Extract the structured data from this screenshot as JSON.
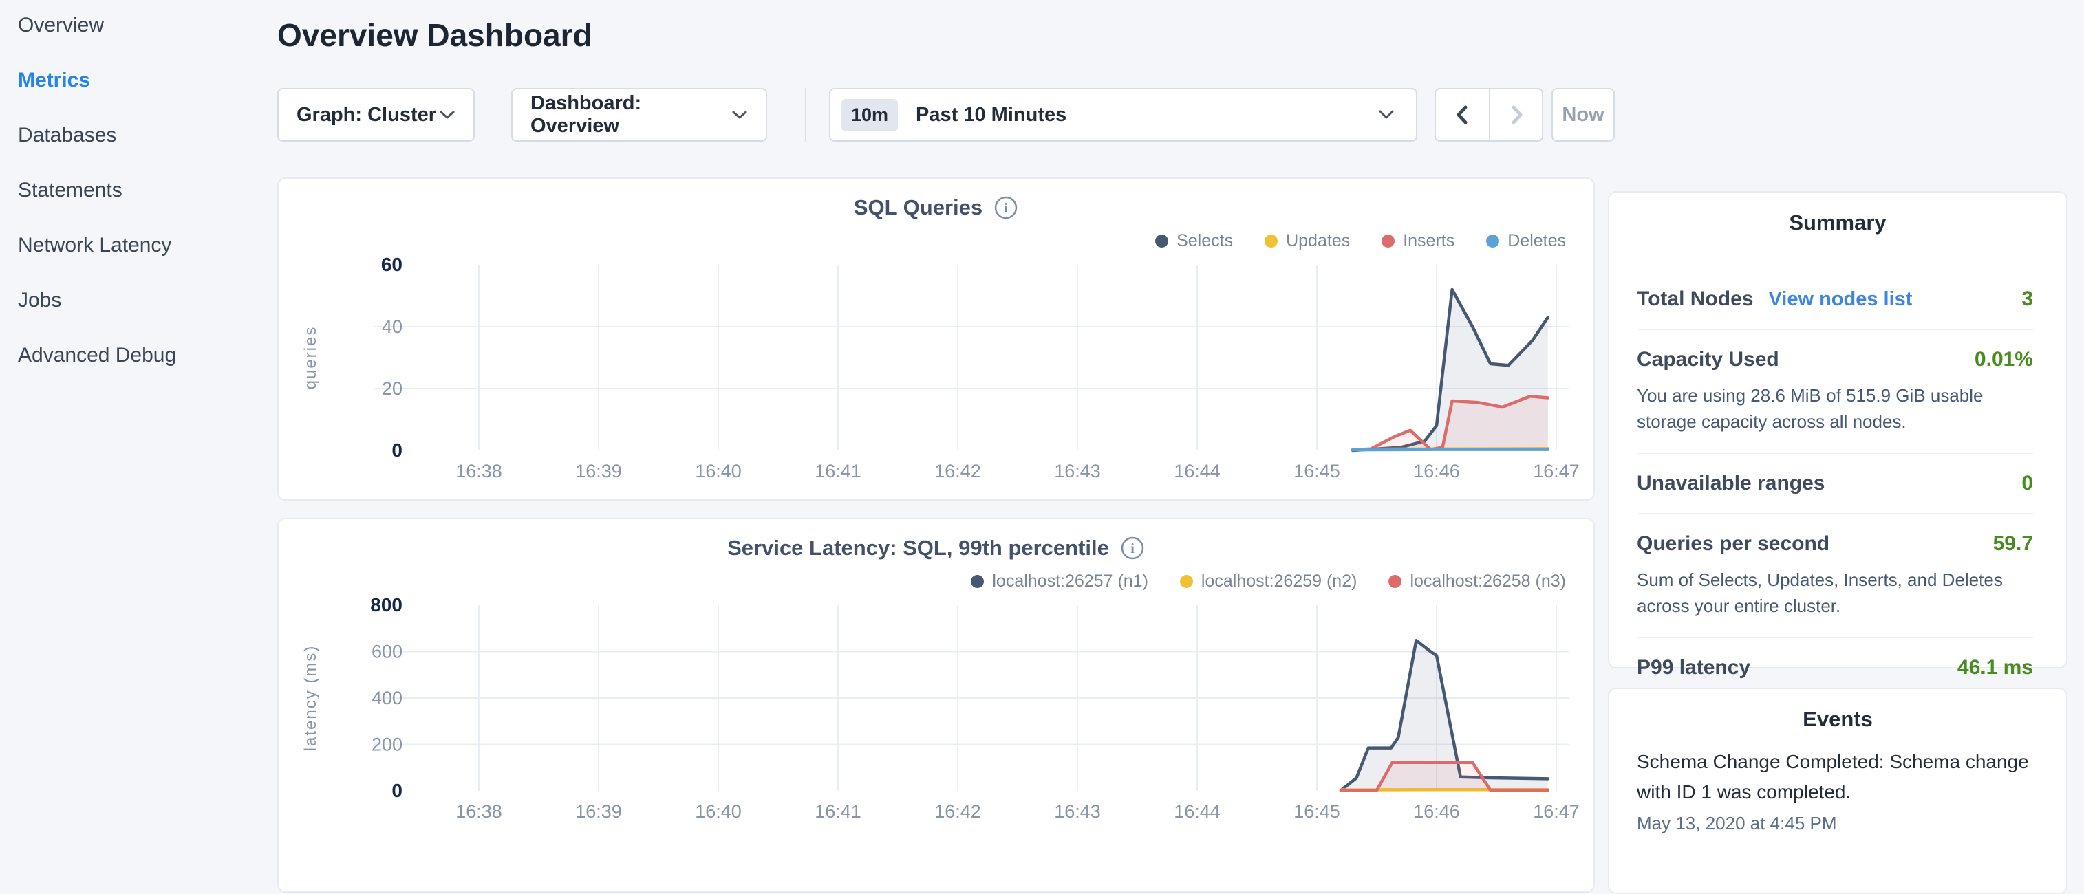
{
  "sidebar": {
    "items": [
      {
        "label": "Overview",
        "active": false
      },
      {
        "label": "Metrics",
        "active": true
      },
      {
        "label": "Databases",
        "active": false
      },
      {
        "label": "Statements",
        "active": false
      },
      {
        "label": "Network Latency",
        "active": false
      },
      {
        "label": "Jobs",
        "active": false
      },
      {
        "label": "Advanced Debug",
        "active": false
      }
    ]
  },
  "header": {
    "title": "Overview Dashboard"
  },
  "controls": {
    "graph_dropdown": "Graph: Cluster",
    "dashboard_dropdown": "Dashboard: Overview",
    "range_badge": "10m",
    "range_label": "Past 10 Minutes",
    "now_label": "Now"
  },
  "icons": {
    "dropdown": "chevron-down",
    "prev": "chevron-left",
    "next": "chevron-right",
    "info": "info-circle"
  },
  "chart_data": [
    {
      "type": "area",
      "title": "SQL Queries",
      "ylabel": "queries",
      "ylim": [
        0,
        60
      ],
      "yticks": [
        0,
        20,
        40,
        60
      ],
      "xtick_labels": [
        "16:38",
        "16:39",
        "16:40",
        "16:41",
        "16:42",
        "16:43",
        "16:44",
        "16:45",
        "16:46",
        "16:47"
      ],
      "x_range_minutes": [
        0,
        9
      ],
      "grid": true,
      "legend_position": "top-right",
      "series": [
        {
          "name": "Selects",
          "color": "#475872",
          "fill": true,
          "points": [
            [
              7.3,
              0
            ],
            [
              7.5,
              0.5
            ],
            [
              7.7,
              1
            ],
            [
              7.9,
              3
            ],
            [
              8.0,
              8
            ],
            [
              8.13,
              52
            ],
            [
              8.3,
              40
            ],
            [
              8.45,
              28
            ],
            [
              8.6,
              27.5
            ],
            [
              8.8,
              35.5
            ],
            [
              8.93,
              43
            ]
          ]
        },
        {
          "name": "Updates",
          "color": "#f2c033",
          "fill": false,
          "points": [
            [
              7.3,
              0.4
            ],
            [
              8.0,
              0.5
            ],
            [
              8.93,
              0.6
            ]
          ]
        },
        {
          "name": "Inserts",
          "color": "#dd6b6b",
          "fill": true,
          "points": [
            [
              7.3,
              0.2
            ],
            [
              7.45,
              0.5
            ],
            [
              7.65,
              4.5
            ],
            [
              7.78,
              6.5
            ],
            [
              7.95,
              0.3
            ],
            [
              8.05,
              1
            ],
            [
              8.13,
              16
            ],
            [
              8.35,
              15.5
            ],
            [
              8.55,
              14
            ],
            [
              8.78,
              17.5
            ],
            [
              8.93,
              17
            ]
          ]
        },
        {
          "name": "Deletes",
          "color": "#5ca2d6",
          "fill": false,
          "points": [
            [
              7.3,
              0.2
            ],
            [
              8.0,
              0.3
            ],
            [
              8.93,
              0.3
            ]
          ]
        }
      ]
    },
    {
      "type": "area",
      "title": "Service Latency: SQL, 99th percentile",
      "ylabel": "latency (ms)",
      "ylim": [
        0,
        800
      ],
      "yticks": [
        0,
        200,
        400,
        600,
        800
      ],
      "xtick_labels": [
        "16:38",
        "16:39",
        "16:40",
        "16:41",
        "16:42",
        "16:43",
        "16:44",
        "16:45",
        "16:46",
        "16:47"
      ],
      "x_range_minutes": [
        0,
        9
      ],
      "grid": true,
      "legend_position": "top-right",
      "series": [
        {
          "name": "localhost:26257 (n1)",
          "color": "#475872",
          "fill": true,
          "points": [
            [
              7.2,
              2
            ],
            [
              7.33,
              55
            ],
            [
              7.43,
              185
            ],
            [
              7.62,
              185
            ],
            [
              7.68,
              230
            ],
            [
              7.83,
              648
            ],
            [
              7.95,
              600
            ],
            [
              8.0,
              583
            ],
            [
              8.2,
              60
            ],
            [
              8.4,
              57
            ],
            [
              8.93,
              52
            ]
          ]
        },
        {
          "name": "localhost:26259 (n2)",
          "color": "#f2c033",
          "fill": false,
          "points": [
            [
              7.2,
              4
            ],
            [
              8.0,
              5
            ],
            [
              8.93,
              5
            ]
          ]
        },
        {
          "name": "localhost:26258 (n3)",
          "color": "#dd6b6b",
          "fill": true,
          "points": [
            [
              7.2,
              2
            ],
            [
              7.5,
              2
            ],
            [
              7.63,
              122
            ],
            [
              8.3,
              122
            ],
            [
              8.45,
              3
            ],
            [
              8.93,
              3
            ]
          ]
        }
      ]
    }
  ],
  "summary": {
    "title": "Summary",
    "rows": [
      {
        "label": "Total Nodes",
        "link": "View nodes list",
        "value": "3",
        "desc": null
      },
      {
        "label": "Capacity Used",
        "link": null,
        "value": "0.01%",
        "desc": "You are using 28.6 MiB of 515.9 GiB usable storage capacity across all nodes."
      },
      {
        "label": "Unavailable ranges",
        "link": null,
        "value": "0",
        "desc": null
      },
      {
        "label": "Queries per second",
        "link": null,
        "value": "59.7",
        "desc": "Sum of Selects, Updates, Inserts, and Deletes across your entire cluster."
      },
      {
        "label": "P99 latency",
        "link": null,
        "value": "46.1 ms",
        "desc": null
      }
    ],
    "value_color": "#478c1e",
    "link_color": "#3d85e0"
  },
  "events": {
    "title": "Events",
    "items": [
      {
        "message": "Schema Change Completed: Schema change with ID 1 was completed.",
        "timestamp": "May 13, 2020 at 4:45 PM"
      }
    ]
  }
}
